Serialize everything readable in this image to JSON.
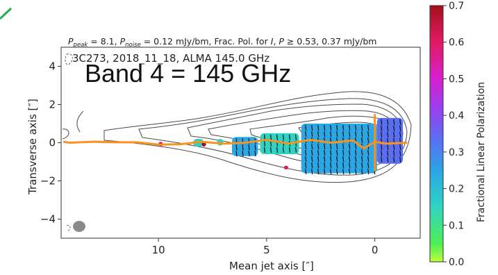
{
  "chart_data": {
    "type": "scatter",
    "header": "P_peak = 8.1, P_noise = 0.12 mJy/bm, Frac. Pol. for I, P ≥ 0.53, 0.37 mJy/bm",
    "header_parts": {
      "p_peak_sym": "P",
      "p_peak_sub": "peak",
      "p_peak_rest": " = 8.1, ",
      "p_noise_sym": "P",
      "p_noise_sub": "noise",
      "p_noise_rest": " = 0.12 mJy/bm, Frac. Pol. for ",
      "i_sym": "I",
      "comma": ", ",
      "p_sym": "P",
      "thresh_rest": " ≥  0.53, 0.37 mJy/bm"
    },
    "subtitle": "3C273, 2018_11_18, ALMA 145.0 GHz",
    "annotation": "Band 4 = 145 GHz",
    "xlabel": "Mean jet axis [″]",
    "ylabel": "Transverse axis [″]",
    "xlim": [
      14.5,
      -2.1
    ],
    "ylim": [
      -5,
      5
    ],
    "x_ticks": [
      10,
      5,
      0
    ],
    "y_ticks": [
      -4,
      -2,
      0,
      2,
      4
    ],
    "colorbar": {
      "label": "Fractional Linear Polarization",
      "range": [
        0.0,
        0.7
      ],
      "ticks": [
        "0.0",
        "0.1",
        "0.2",
        "0.3",
        "0.4",
        "0.5",
        "0.6",
        "0.7"
      ],
      "colors": [
        "#b9ff3a",
        "#50ee55",
        "#2fd3c3",
        "#2ba7e6",
        "#5a6ef0",
        "#9c3ef0",
        "#d81fcb",
        "#e01a62",
        "#a3101a"
      ]
    },
    "ridge_line": {
      "color": "#f7931e",
      "x": [
        14.4,
        14.1,
        13.0,
        12.0,
        11.0,
        10.0,
        9.0,
        8.0,
        7.0,
        6.0,
        5.0,
        4.0,
        3.0,
        2.0,
        1.0,
        0.5,
        0.0,
        -0.5,
        -1.5
      ],
      "y": [
        0.05,
        0.0,
        0.05,
        0.02,
        0.02,
        -0.1,
        -0.08,
        0.05,
        -0.05,
        0.0,
        0.15,
        -0.05,
        0.15,
        0.0,
        0.12,
        -0.3,
        0.05,
        -0.05,
        0.0
      ]
    },
    "transverse_bar": {
      "x": 0.0,
      "y_range": [
        -1.5,
        1.5
      ]
    },
    "polarized_regions": [
      {
        "x_range": [
          3.4,
          -0.1
        ],
        "y_range": [
          -1.6,
          1.0
        ],
        "frac_pol": 0.3
      },
      {
        "x_range": [
          -0.1,
          -1.3
        ],
        "y_range": [
          -1.1,
          1.3
        ],
        "frac_pol": 0.38
      },
      {
        "x_range": [
          5.3,
          3.5
        ],
        "y_range": [
          -0.6,
          0.5
        ],
        "frac_pol": 0.17
      },
      {
        "x_range": [
          6.6,
          5.4
        ],
        "y_range": [
          -0.7,
          0.3
        ],
        "frac_pol": 0.22
      },
      {
        "x_range": [
          8.4,
          7.9
        ],
        "y_range": [
          -0.2,
          0.2
        ],
        "frac_pol": 0.15
      },
      {
        "x_range": [
          7.3,
          7.0
        ],
        "y_range": [
          -0.15,
          0.2
        ],
        "frac_pol": 0.15
      },
      {
        "x_range": [
          10.0,
          9.8
        ],
        "y_range": [
          -0.2,
          0.05
        ],
        "frac_pol": 0.6
      },
      {
        "x_range": [
          8.0,
          7.8
        ],
        "y_range": [
          -0.2,
          0.05
        ],
        "frac_pol": 0.7
      },
      {
        "x_range": [
          4.2,
          4.0
        ],
        "y_range": [
          -1.4,
          -1.2
        ],
        "frac_pol": 0.6
      }
    ]
  }
}
